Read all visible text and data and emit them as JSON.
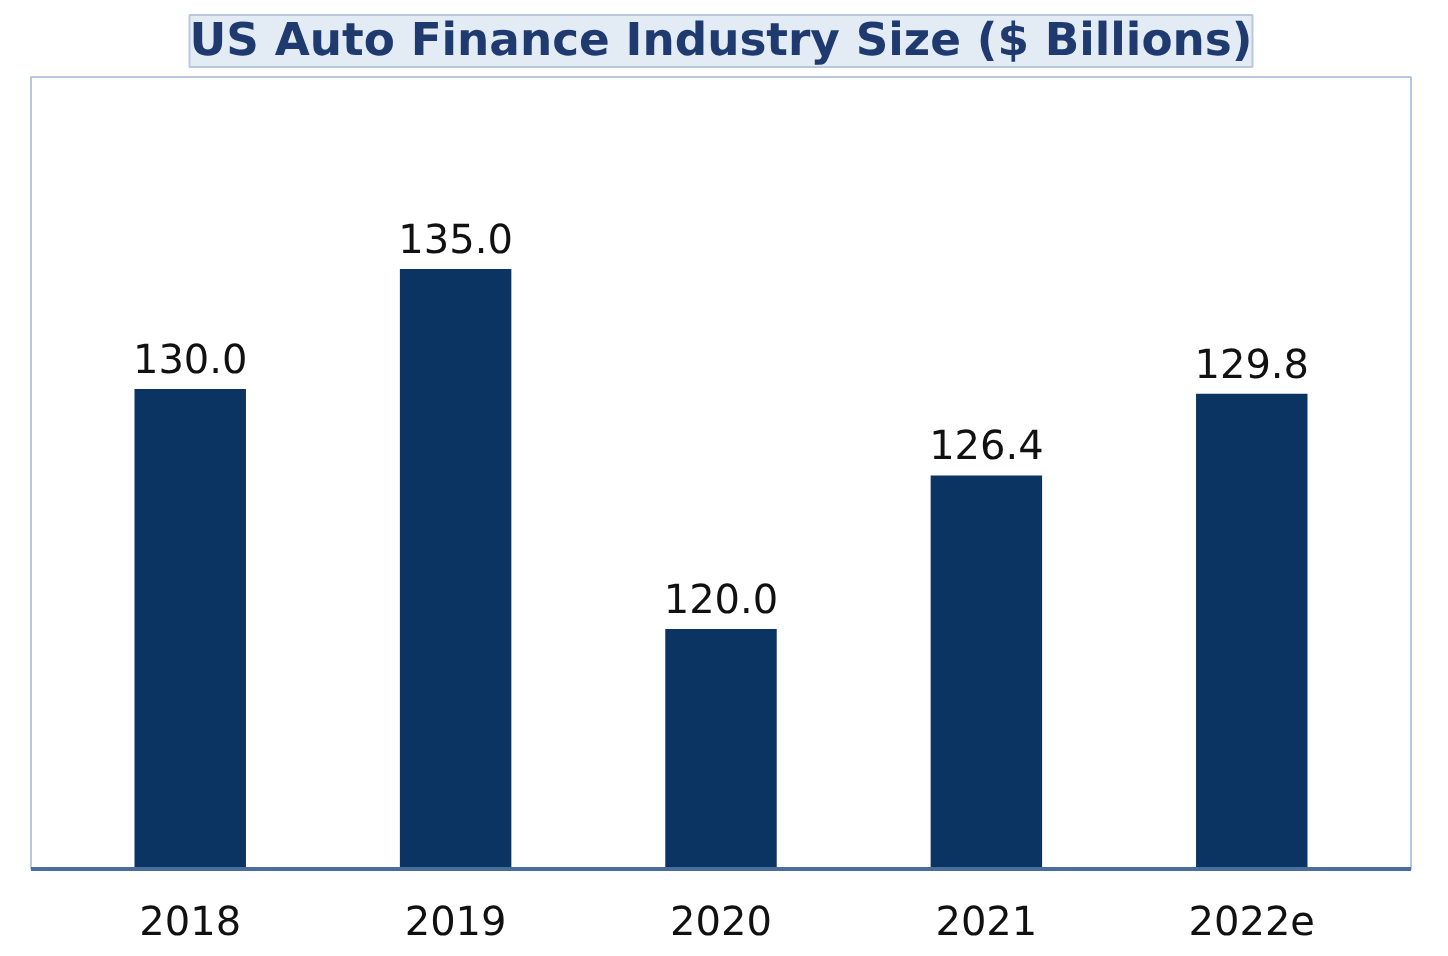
{
  "chart_data": {
    "type": "bar",
    "title": "US Auto Finance Industry Size ($ Billions)",
    "categories": [
      "2018",
      "2019",
      "2020",
      "2021",
      "2022e"
    ],
    "values": [
      130.0,
      135.0,
      120.0,
      126.4,
      129.8
    ],
    "value_labels": [
      "130.0",
      "135.0",
      "120.0",
      "126.4",
      "129.8"
    ],
    "color": "#0b3463",
    "ylim": [
      110,
      143
    ]
  }
}
